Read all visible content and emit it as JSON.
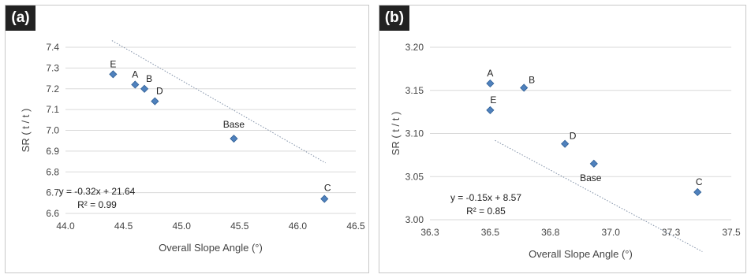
{
  "chart_data": [
    {
      "type": "scatter",
      "panel_label": "(a)",
      "xlabel": "Overall Slope Angle (°)",
      "ylabel": "SR ( t / t )",
      "xlim": [
        44.0,
        46.5
      ],
      "ylim": [
        6.6,
        7.4
      ],
      "xticks": [
        "44.0",
        "44.5",
        "45.0",
        "45.5",
        "46.0",
        "46.5"
      ],
      "yticks": [
        "6.6",
        "6.7",
        "6.8",
        "6.9",
        "7.0",
        "7.1",
        "7.2",
        "7.3",
        "7.4"
      ],
      "points": [
        {
          "label": "E",
          "x": 44.41,
          "y": 7.27
        },
        {
          "label": "A",
          "x": 44.6,
          "y": 7.22
        },
        {
          "label": "B",
          "x": 44.68,
          "y": 7.2
        },
        {
          "label": "D",
          "x": 44.77,
          "y": 7.14
        },
        {
          "label": "Base",
          "x": 45.45,
          "y": 6.96
        },
        {
          "label": "C",
          "x": 46.23,
          "y": 6.67
        }
      ],
      "trendline": {
        "slope": -0.32,
        "intercept": 21.64,
        "equation": "y = -0.32x + 21.64",
        "r2": "R² = 0.99"
      },
      "grid": "horizontal",
      "marker_color": "#4f81bd"
    },
    {
      "type": "scatter",
      "panel_label": "(b)",
      "xlabel": "Overall Slope Angle (°)",
      "ylabel": "SR ( t / t )",
      "xlim": [
        36.25,
        37.5
      ],
      "ylim": [
        3.0,
        3.2
      ],
      "xticks": [
        "36.3",
        "36.5",
        "36.8",
        "37.0",
        "37.3",
        "37.5"
      ],
      "yticks": [
        "3.00",
        "3.05",
        "3.10",
        "3.15",
        "3.20"
      ],
      "points": [
        {
          "label": "A",
          "x": 36.5,
          "y": 3.158
        },
        {
          "label": "B",
          "x": 36.64,
          "y": 3.153
        },
        {
          "label": "E",
          "x": 36.5,
          "y": 3.127
        },
        {
          "label": "D",
          "x": 36.81,
          "y": 3.088
        },
        {
          "label": "Base",
          "x": 36.93,
          "y": 3.065
        },
        {
          "label": "C",
          "x": 37.36,
          "y": 3.032
        }
      ],
      "trendline": {
        "slope": -0.15,
        "intercept": 8.57,
        "equation": "y = -0.15x + 8.57",
        "r2": "R² = 0.85"
      },
      "grid": "horizontal",
      "marker_color": "#4f81bd"
    }
  ]
}
